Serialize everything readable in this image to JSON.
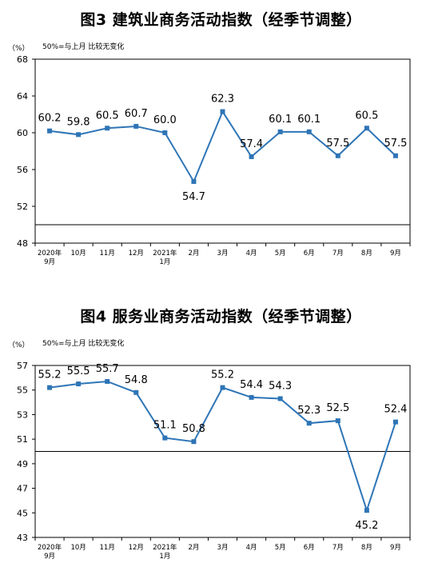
{
  "chart_data": [
    {
      "type": "line",
      "title": "图3  建筑业商务活动指数（经季节调整）",
      "unit_label": "（%）",
      "note": "50%=与上月 比较无变化",
      "categories": [
        [
          "2020年",
          "9月"
        ],
        [
          "10月"
        ],
        [
          "11月"
        ],
        [
          "12月"
        ],
        [
          "2021年",
          "1月"
        ],
        [
          "2月"
        ],
        [
          "3月"
        ],
        [
          "4月"
        ],
        [
          "5月"
        ],
        [
          "6月"
        ],
        [
          "7月"
        ],
        [
          "8月"
        ],
        [
          "9月"
        ]
      ],
      "series": [
        {
          "values": [
            60.2,
            59.8,
            60.5,
            60.7,
            60.0,
            54.7,
            62.3,
            57.4,
            60.1,
            60.1,
            57.5,
            60.5,
            57.5
          ]
        }
      ],
      "labels": [
        "60.2",
        "59.8",
        "60.5",
        "60.7",
        "60.0",
        "54.7",
        "62.3",
        "57.4",
        "60.1",
        "60.1",
        "57.5",
        "60.5",
        "57.5"
      ],
      "label_pos": [
        "above",
        "above",
        "above",
        "above",
        "above",
        "below",
        "above",
        "above",
        "above",
        "above",
        "above",
        "above",
        "above"
      ],
      "ylim": [
        48,
        68
      ],
      "yticks": [
        48,
        52,
        56,
        60,
        64,
        68
      ],
      "reference_line": 50,
      "color": "#2e75b6"
    },
    {
      "type": "line",
      "title": "图4  服务业商务活动指数（经季节调整）",
      "unit_label": "（%）",
      "note": "50%=与上月 比较无变化",
      "categories": [
        [
          "2020年",
          "9月"
        ],
        [
          "10月"
        ],
        [
          "11月"
        ],
        [
          "12月"
        ],
        [
          "2021年",
          "1月"
        ],
        [
          "2月"
        ],
        [
          "3月"
        ],
        [
          "4月"
        ],
        [
          "5月"
        ],
        [
          "6月"
        ],
        [
          "7月"
        ],
        [
          "8月"
        ],
        [
          "9月"
        ]
      ],
      "series": [
        {
          "values": [
            55.2,
            55.5,
            55.7,
            54.8,
            51.1,
            50.8,
            55.2,
            54.4,
            54.3,
            52.3,
            52.5,
            45.2,
            52.4
          ]
        }
      ],
      "labels": [
        "55.2",
        "55.5",
        "55.7",
        "54.8",
        "51.1",
        "50.8",
        "55.2",
        "54.4",
        "54.3",
        "52.3",
        "52.5",
        "45.2",
        "52.4"
      ],
      "label_pos": [
        "above",
        "above",
        "above",
        "above",
        "above",
        "above",
        "above",
        "above",
        "above",
        "above",
        "above",
        "below",
        "above"
      ],
      "ylim": [
        43,
        57
      ],
      "yticks": [
        43,
        45,
        47,
        49,
        51,
        53,
        55,
        57
      ],
      "reference_line": 50,
      "color": "#2e75b6"
    }
  ]
}
